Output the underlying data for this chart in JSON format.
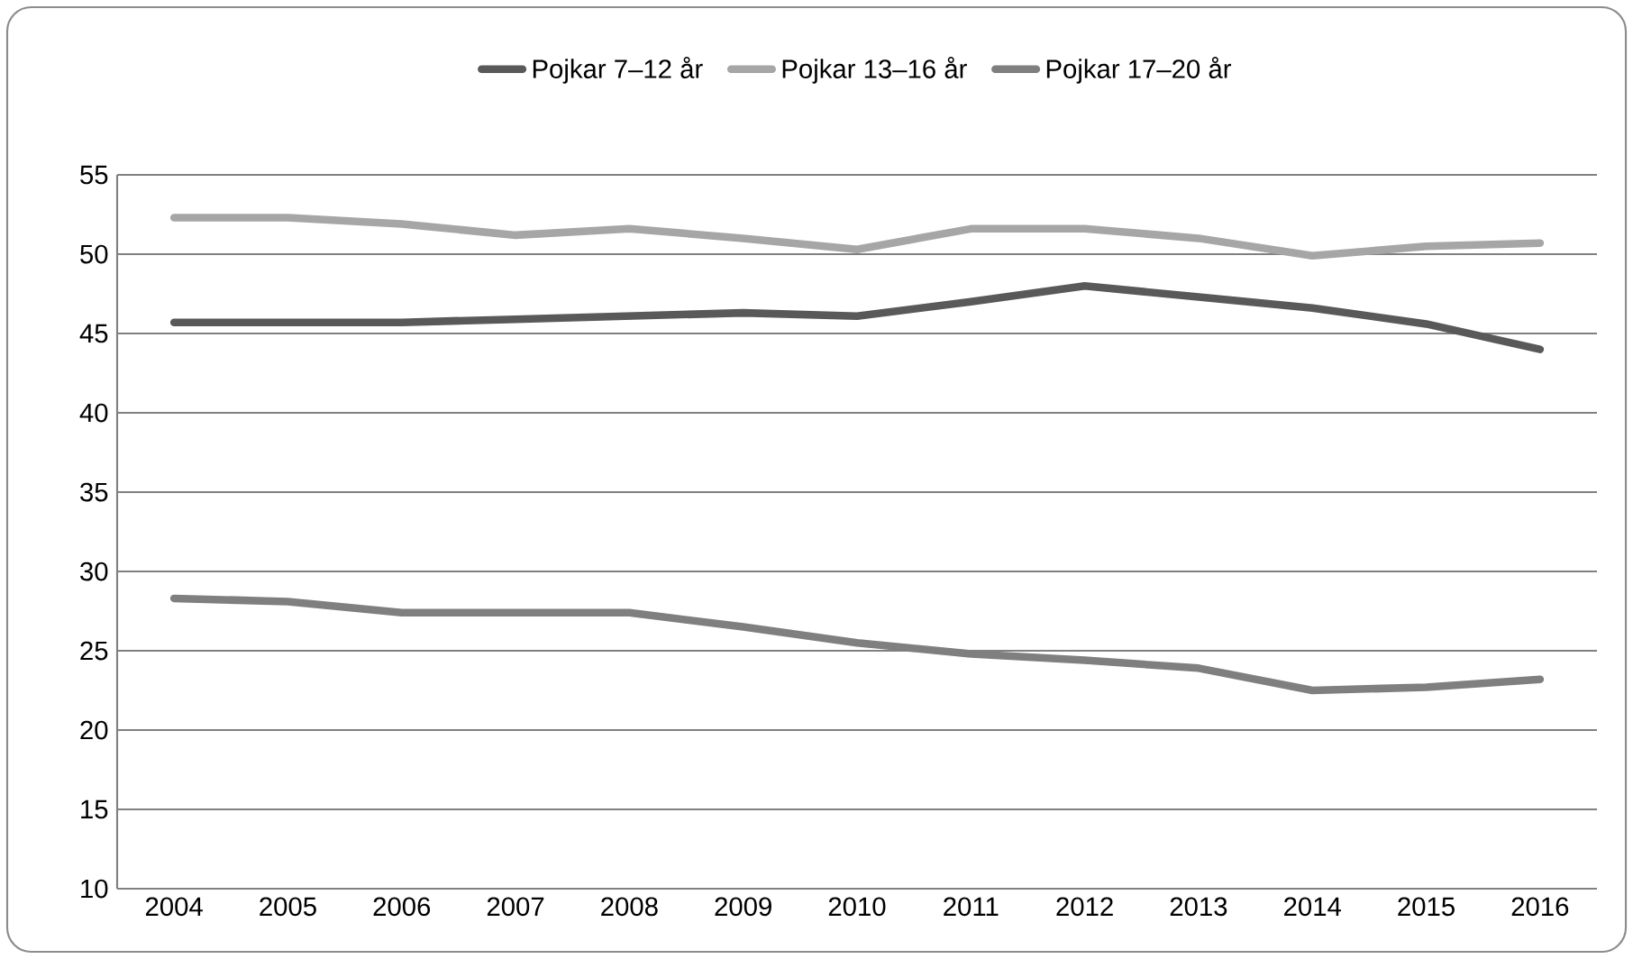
{
  "chart_data": {
    "type": "line",
    "categories": [
      "2004",
      "2005",
      "2006",
      "2007",
      "2008",
      "2009",
      "2010",
      "2011",
      "2012",
      "2013",
      "2014",
      "2015",
      "2016"
    ],
    "series": [
      {
        "name": "Pojkar 7–12 år",
        "color": "#595959",
        "values": [
          45.7,
          45.7,
          45.7,
          45.9,
          46.1,
          46.3,
          46.1,
          47.0,
          48.0,
          47.3,
          46.6,
          45.6,
          44.0
        ]
      },
      {
        "name": "Pojkar 13–16 år",
        "color": "#a6a6a6",
        "values": [
          52.3,
          52.3,
          51.9,
          51.2,
          51.6,
          51.0,
          50.3,
          51.6,
          51.6,
          51.0,
          49.9,
          50.5,
          50.7
        ]
      },
      {
        "name": "Pojkar 17–20 år",
        "color": "#7f7f7f",
        "values": [
          28.3,
          28.1,
          27.4,
          27.4,
          27.4,
          26.5,
          25.5,
          24.8,
          24.4,
          23.9,
          22.5,
          22.7,
          23.2
        ]
      }
    ],
    "ylim": [
      10,
      55
    ],
    "yticks": [
      10,
      15,
      20,
      25,
      30,
      35,
      40,
      45,
      50,
      55
    ],
    "grid": "y",
    "legend": "top",
    "marker": "none",
    "line_style": "solid"
  }
}
